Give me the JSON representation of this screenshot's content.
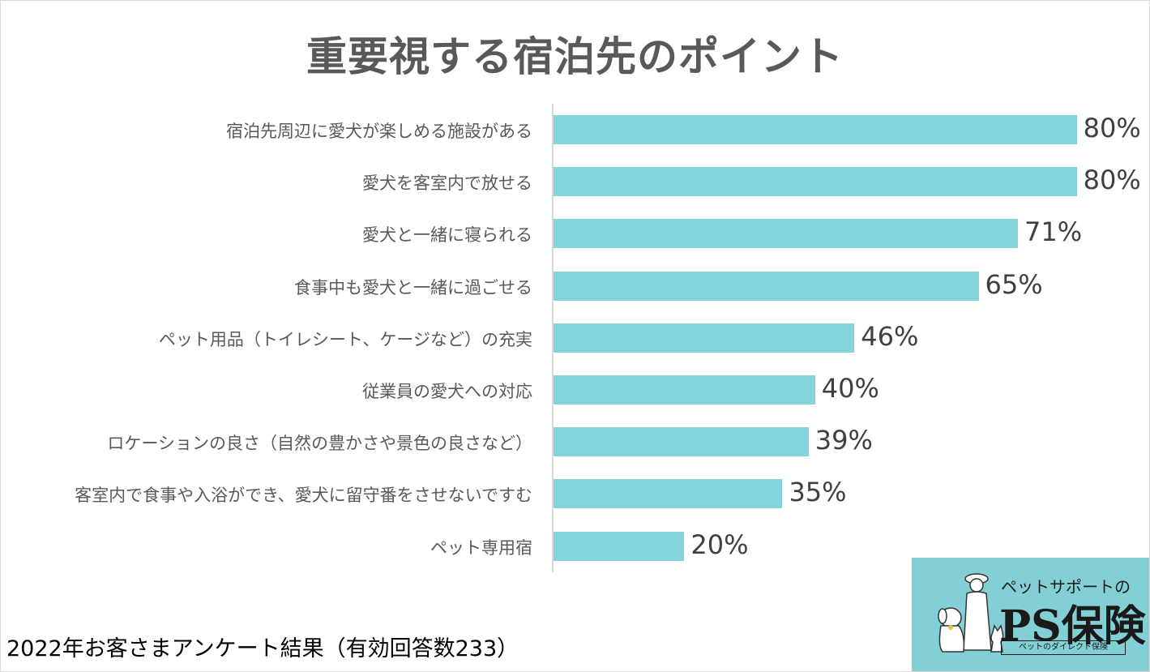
{
  "chart_data": {
    "type": "bar",
    "orientation": "horizontal",
    "title": "重要視する宿泊先のポイント",
    "categories": [
      "宿泊先周辺に愛犬が楽しめる施設がある",
      "愛犬を客室内で放せる",
      "愛犬と一緒に寝られる",
      "食事中も愛犬と一緒に過ごせる",
      "ペット用品（トイレシート、ケージなど）の充実",
      "従業員の愛犬への対応",
      "ロケーションの良さ（自然の豊かさや景色の良さなど）",
      "客室内で食事や入浴ができ、愛犬に留守番をさせないですむ",
      "ペット専用宿"
    ],
    "values": [
      80,
      80,
      71,
      65,
      46,
      40,
      39,
      35,
      20
    ],
    "value_labels": [
      "80%",
      "80%",
      "71%",
      "65%",
      "46%",
      "40%",
      "39%",
      "35%",
      "20%"
    ],
    "xlim": [
      0,
      100
    ],
    "bar_color": "#82d6db",
    "grid": false
  },
  "footnote": "2022年お客さまアンケート結果（有効回答数233）",
  "logo": {
    "subtitle": "ペットサポートの",
    "name": "PS保険",
    "tagline": "ペットのダイレクト保険",
    "background": "#82d0d6"
  }
}
